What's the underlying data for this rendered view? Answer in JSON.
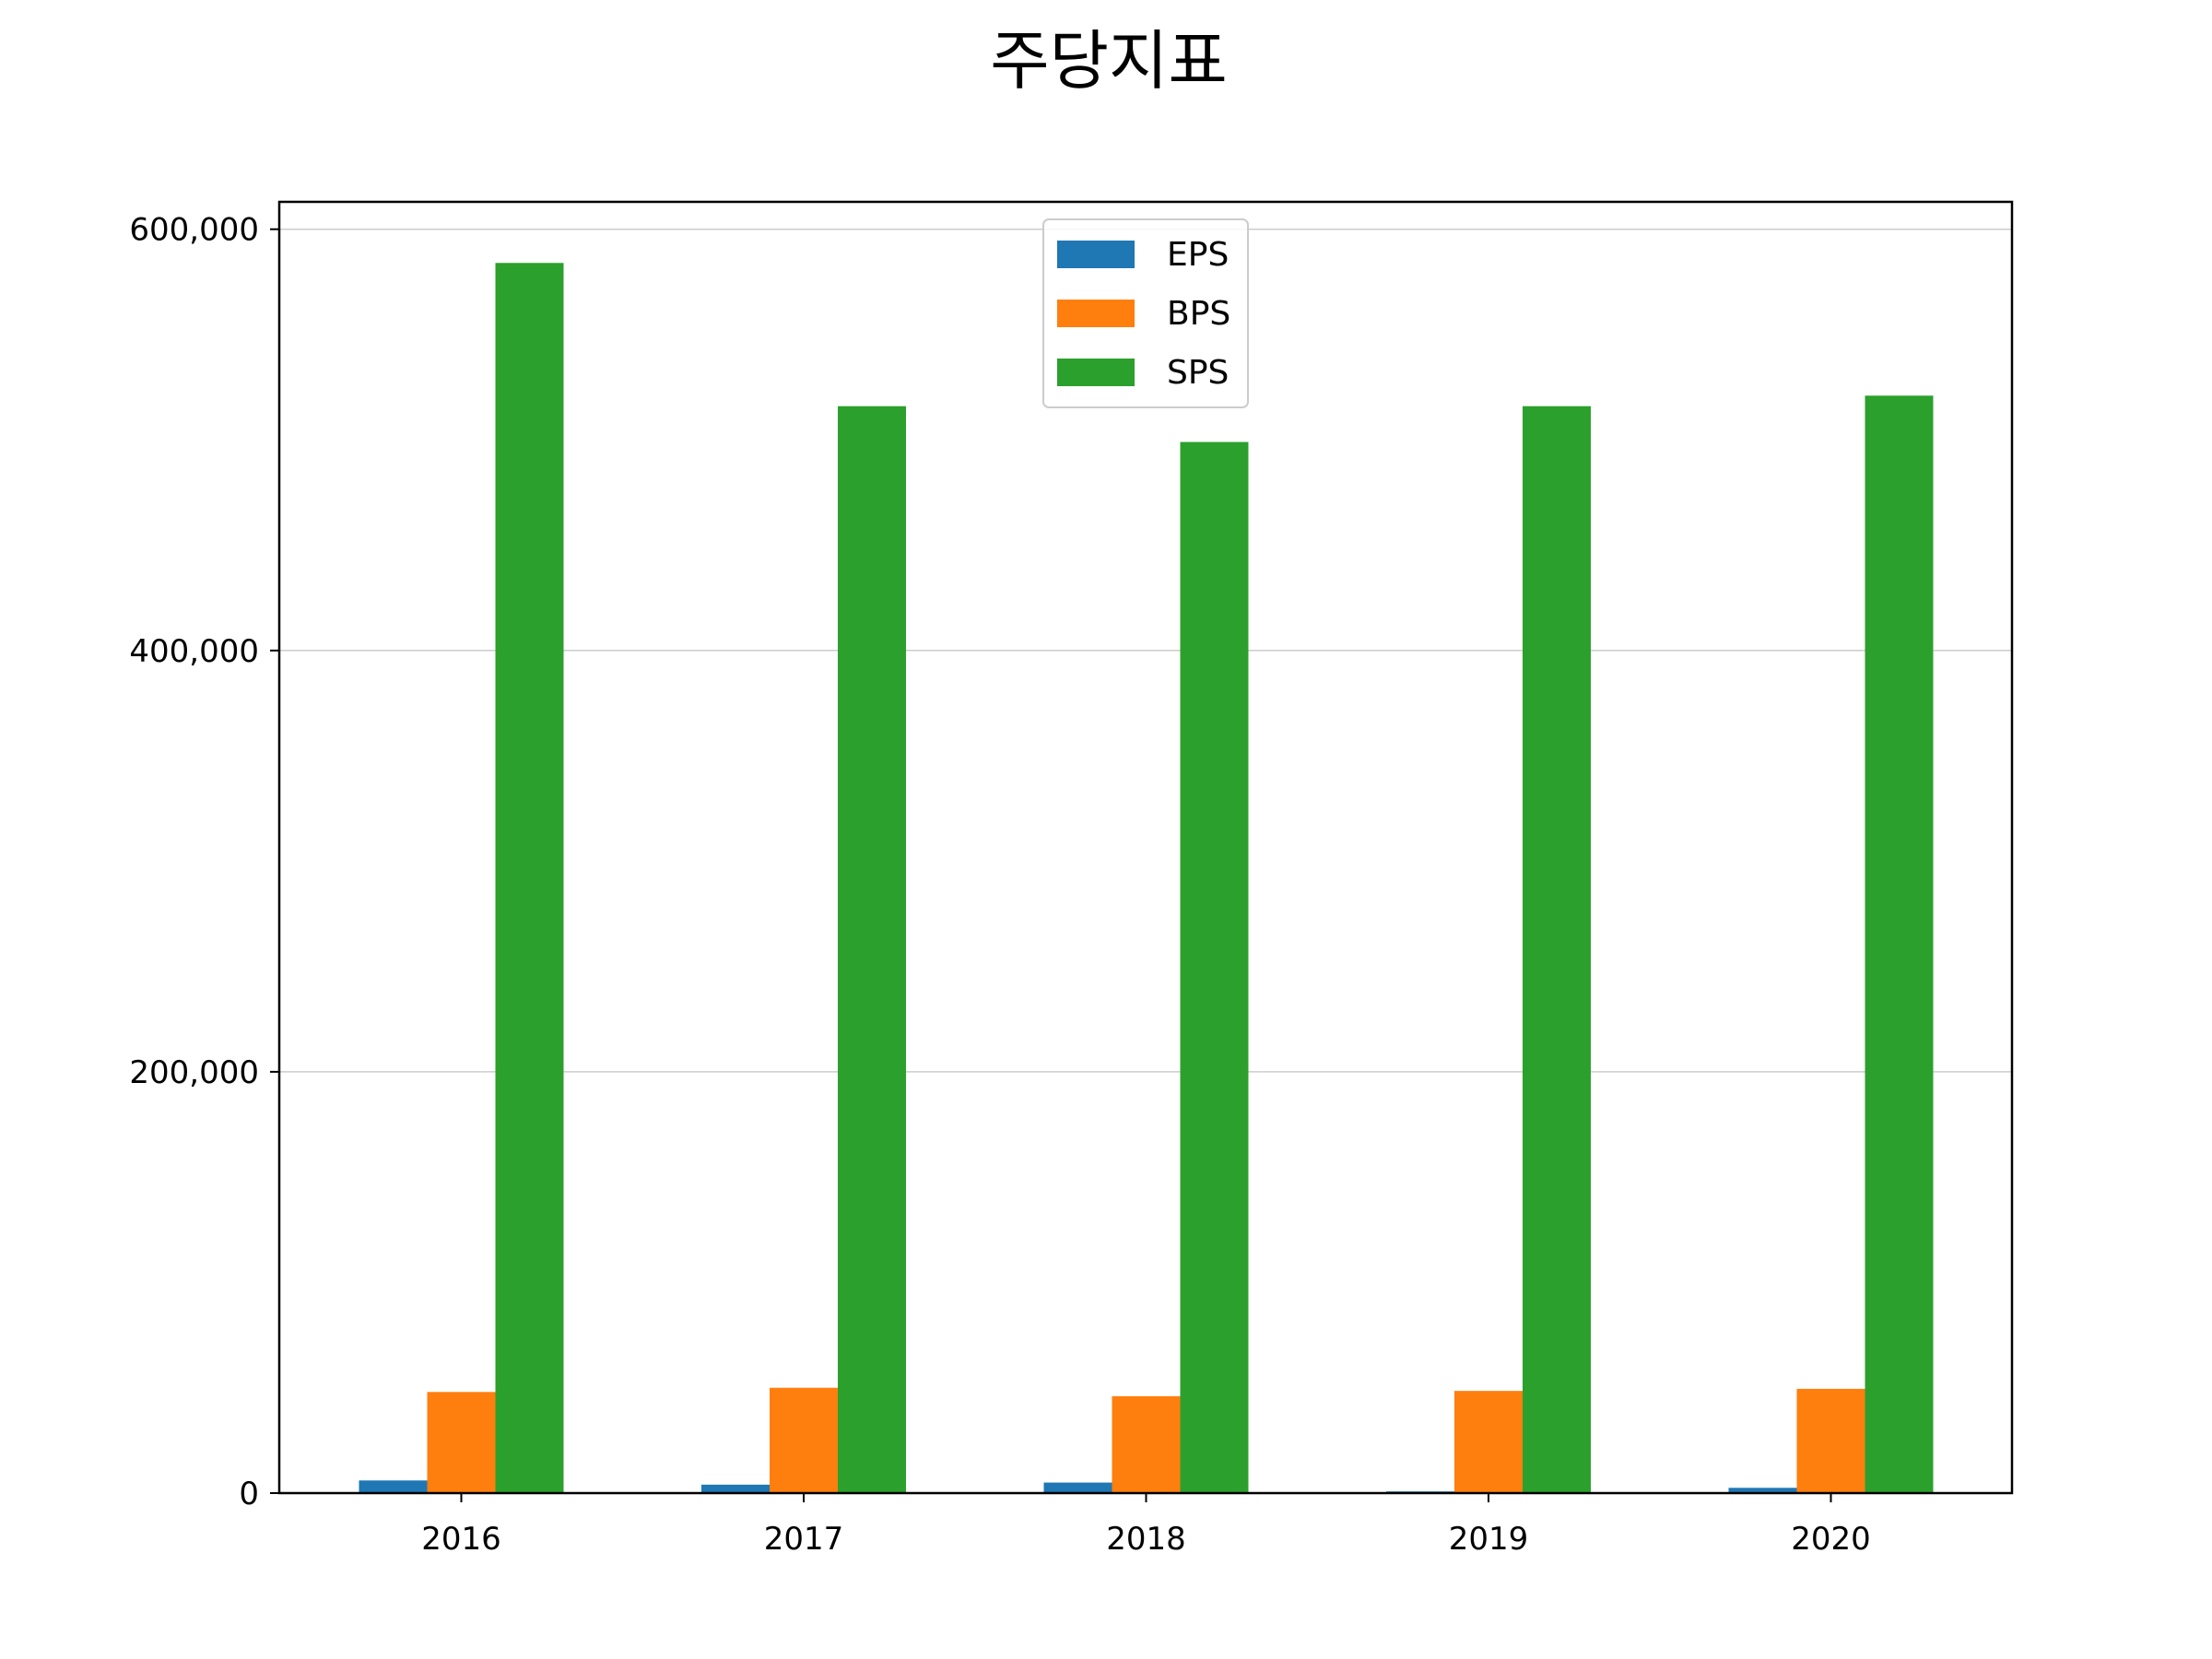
{
  "chart_data": {
    "type": "bar",
    "title": "주당지표",
    "xlabel": "",
    "ylabel": "",
    "categories": [
      "2016",
      "2017",
      "2018",
      "2019",
      "2020"
    ],
    "series": [
      {
        "name": "EPS",
        "color": "#1f77b4",
        "values": [
          6000,
          4000,
          5000,
          800,
          2500
        ]
      },
      {
        "name": "BPS",
        "color": "#ff7f0e",
        "values": [
          48000,
          50000,
          46000,
          48500,
          49500
        ]
      },
      {
        "name": "SPS",
        "color": "#2ca02c",
        "values": [
          584000,
          516000,
          499000,
          516000,
          521000
        ]
      }
    ],
    "ylim": [
      0,
      613000
    ],
    "yticks": [
      {
        "value": 0,
        "label": "0"
      },
      {
        "value": 200000,
        "label": "200,000"
      },
      {
        "value": 400000,
        "label": "400,000"
      },
      {
        "value": 600000,
        "label": "600,000"
      }
    ],
    "grid": "horizontal",
    "legend_position": "upper center"
  }
}
